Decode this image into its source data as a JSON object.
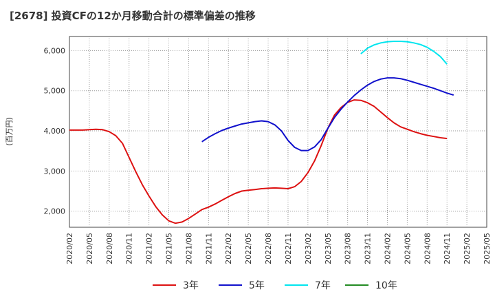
{
  "chart_data": {
    "type": "line",
    "title": "[2678]  投資CFの12か月移動合計の標準偏差の推移",
    "ylabel": "(百万円)",
    "xlabel": "",
    "ylim": [
      1600,
      6350
    ],
    "yticks": [
      2000,
      3000,
      4000,
      5000,
      6000
    ],
    "ytick_labels": [
      "2,000",
      "3,000",
      "4,000",
      "5,000",
      "6,000"
    ],
    "x_start": "2020-02",
    "x_end": "2025-05",
    "xtick_labels": [
      "2020/02",
      "2020/05",
      "2020/08",
      "2020/11",
      "2021/02",
      "2021/05",
      "2021/08",
      "2021/11",
      "2022/02",
      "2022/05",
      "2022/08",
      "2022/11",
      "2023/02",
      "2023/05",
      "2023/08",
      "2023/11",
      "2024/02",
      "2024/05",
      "2024/08",
      "2024/11",
      "2025/02",
      "2025/05"
    ],
    "grid": true,
    "legend_position": "bottom",
    "series": [
      {
        "name": "3年",
        "color": "#dd1111",
        "points": [
          [
            "2020-02",
            4020
          ],
          [
            "2020-03",
            4020
          ],
          [
            "2020-04",
            4020
          ],
          [
            "2020-05",
            4030
          ],
          [
            "2020-06",
            4040
          ],
          [
            "2020-07",
            4030
          ],
          [
            "2020-08",
            3980
          ],
          [
            "2020-09",
            3880
          ],
          [
            "2020-10",
            3690
          ],
          [
            "2020-11",
            3340
          ],
          [
            "2020-12",
            2990
          ],
          [
            "2021-01",
            2660
          ],
          [
            "2021-02",
            2380
          ],
          [
            "2021-03",
            2120
          ],
          [
            "2021-04",
            1910
          ],
          [
            "2021-05",
            1760
          ],
          [
            "2021-06",
            1700
          ],
          [
            "2021-07",
            1730
          ],
          [
            "2021-08",
            1820
          ],
          [
            "2021-09",
            1930
          ],
          [
            "2021-10",
            2040
          ],
          [
            "2021-11",
            2100
          ],
          [
            "2021-12",
            2180
          ],
          [
            "2022-01",
            2270
          ],
          [
            "2022-02",
            2360
          ],
          [
            "2022-03",
            2440
          ],
          [
            "2022-04",
            2500
          ],
          [
            "2022-05",
            2520
          ],
          [
            "2022-06",
            2540
          ],
          [
            "2022-07",
            2560
          ],
          [
            "2022-08",
            2570
          ],
          [
            "2022-09",
            2580
          ],
          [
            "2022-10",
            2570
          ],
          [
            "2022-11",
            2560
          ],
          [
            "2022-12",
            2610
          ],
          [
            "2023-01",
            2740
          ],
          [
            "2023-02",
            2960
          ],
          [
            "2023-03",
            3250
          ],
          [
            "2023-04",
            3630
          ],
          [
            "2023-05",
            4060
          ],
          [
            "2023-06",
            4390
          ],
          [
            "2023-07",
            4580
          ],
          [
            "2023-08",
            4710
          ],
          [
            "2023-09",
            4770
          ],
          [
            "2023-10",
            4760
          ],
          [
            "2023-11",
            4700
          ],
          [
            "2023-12",
            4610
          ],
          [
            "2024-01",
            4470
          ],
          [
            "2024-02",
            4330
          ],
          [
            "2024-03",
            4200
          ],
          [
            "2024-04",
            4100
          ],
          [
            "2024-05",
            4040
          ],
          [
            "2024-06",
            3980
          ],
          [
            "2024-07",
            3930
          ],
          [
            "2024-08",
            3890
          ],
          [
            "2024-09",
            3860
          ],
          [
            "2024-10",
            3830
          ],
          [
            "2024-11",
            3810
          ]
        ]
      },
      {
        "name": "5年",
        "color": "#1111cc",
        "points": [
          [
            "2021-10",
            3730
          ],
          [
            "2021-11",
            3840
          ],
          [
            "2021-12",
            3930
          ],
          [
            "2022-01",
            4010
          ],
          [
            "2022-02",
            4070
          ],
          [
            "2022-03",
            4120
          ],
          [
            "2022-04",
            4170
          ],
          [
            "2022-05",
            4200
          ],
          [
            "2022-06",
            4230
          ],
          [
            "2022-07",
            4250
          ],
          [
            "2022-08",
            4230
          ],
          [
            "2022-09",
            4150
          ],
          [
            "2022-10",
            4000
          ],
          [
            "2022-11",
            3760
          ],
          [
            "2022-12",
            3590
          ],
          [
            "2023-01",
            3510
          ],
          [
            "2023-02",
            3510
          ],
          [
            "2023-03",
            3600
          ],
          [
            "2023-04",
            3780
          ],
          [
            "2023-05",
            4060
          ],
          [
            "2023-06",
            4330
          ],
          [
            "2023-07",
            4540
          ],
          [
            "2023-08",
            4720
          ],
          [
            "2023-09",
            4880
          ],
          [
            "2023-10",
            5020
          ],
          [
            "2023-11",
            5140
          ],
          [
            "2023-12",
            5230
          ],
          [
            "2024-01",
            5290
          ],
          [
            "2024-02",
            5320
          ],
          [
            "2024-03",
            5320
          ],
          [
            "2024-04",
            5300
          ],
          [
            "2024-05",
            5260
          ],
          [
            "2024-06",
            5210
          ],
          [
            "2024-07",
            5160
          ],
          [
            "2024-08",
            5110
          ],
          [
            "2024-09",
            5060
          ],
          [
            "2024-10",
            5000
          ],
          [
            "2024-11",
            4940
          ],
          [
            "2024-12",
            4890
          ]
        ]
      },
      {
        "name": "7年",
        "color": "#00e5ee",
        "points": [
          [
            "2023-10",
            5920
          ],
          [
            "2023-11",
            6060
          ],
          [
            "2023-12",
            6140
          ],
          [
            "2024-01",
            6190
          ],
          [
            "2024-02",
            6220
          ],
          [
            "2024-03",
            6230
          ],
          [
            "2024-04",
            6230
          ],
          [
            "2024-05",
            6220
          ],
          [
            "2024-06",
            6190
          ],
          [
            "2024-07",
            6150
          ],
          [
            "2024-08",
            6080
          ],
          [
            "2024-09",
            5980
          ],
          [
            "2024-10",
            5850
          ],
          [
            "2024-11",
            5660
          ]
        ]
      },
      {
        "name": "10年",
        "color": "#228b22",
        "points": []
      }
    ]
  }
}
